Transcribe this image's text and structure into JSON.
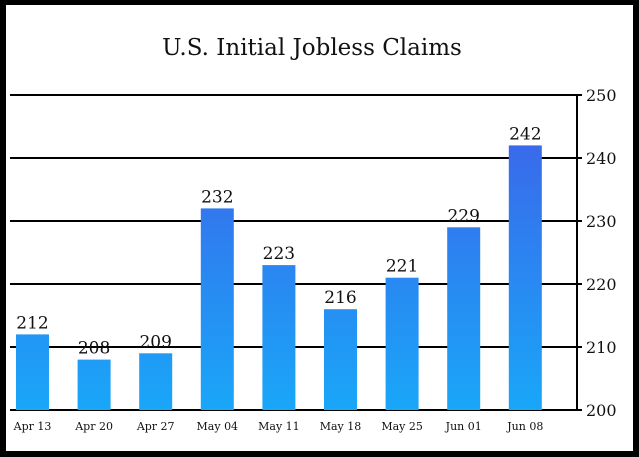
{
  "chart_data": {
    "type": "bar",
    "title": "U.S. Initial Jobless Claims",
    "xlabel": "",
    "ylabel": "",
    "categories": [
      "Apr 13",
      "Apr 20",
      "Apr 27",
      "May 04",
      "May 11",
      "May 18",
      "May 25",
      "Jun 01",
      "Jun 08"
    ],
    "values": [
      212,
      208,
      209,
      232,
      223,
      216,
      221,
      229,
      242
    ],
    "data_labels": [
      "212",
      "208",
      "209",
      "232",
      "223",
      "216",
      "221",
      "229",
      "242"
    ],
    "ylim": [
      200,
      250
    ],
    "yticks": [
      200,
      210,
      220,
      230,
      240,
      250
    ],
    "ytick_labels": [
      "200",
      "210",
      "220",
      "230",
      "240",
      "250"
    ],
    "y_axis_side": "right",
    "grid": true,
    "legend": "none",
    "colors": {
      "frame": "#000000",
      "background": "#ffffff",
      "bar_top": "#3f5ee8",
      "bar_bottom": "#19a7f8",
      "gridline": "#000000",
      "text": "#111111"
    }
  }
}
